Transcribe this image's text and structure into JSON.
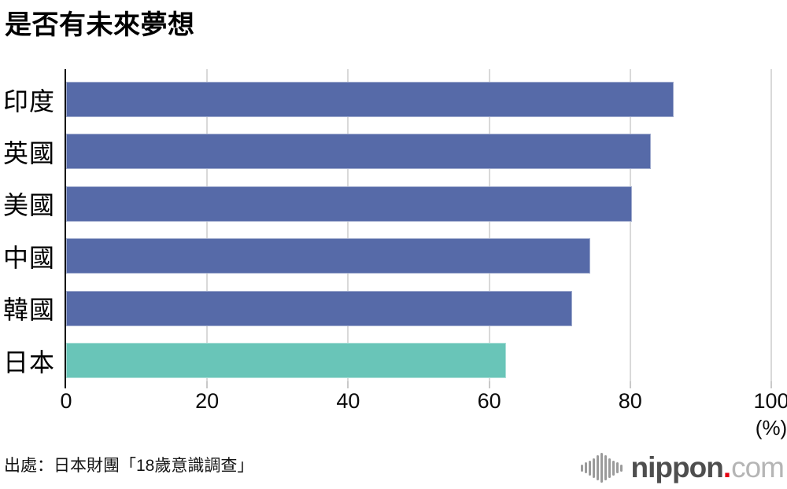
{
  "chart_data": {
    "type": "bar",
    "orientation": "horizontal",
    "title": "是否有未來夢想",
    "categories": [
      "印度",
      "英國",
      "美國",
      "中國",
      "韓國",
      "日本"
    ],
    "values": [
      86.2,
      82.9,
      80.2,
      74.3,
      71.8,
      62.4
    ],
    "unit_label": "(%)",
    "xlabel": "",
    "ylabel": "",
    "xlim": [
      0,
      100
    ],
    "x_ticks": [
      0,
      20,
      40,
      60,
      80,
      100
    ],
    "grid": true,
    "legend": "none",
    "bar_colors": [
      "#566aa8",
      "#566aa8",
      "#566aa8",
      "#566aa8",
      "#566aa8",
      "#69c5b8"
    ],
    "highlight_category": "日本"
  },
  "colors": {
    "bar_blue": "#566aa8",
    "bar_teal": "#69c5b8",
    "gridline": "#d9d9d9",
    "axis": "#000000",
    "logo_red": "#e60012",
    "logo_dark_gray": "#4e4e4e",
    "logo_light_gray": "#b5b5b5"
  },
  "footer": {
    "source": "出處：日本財團「18歲意識調查」",
    "logo": {
      "icon": "soundwave-bars-icon",
      "name": "nippon",
      "dot": ".",
      "tld": "com"
    }
  }
}
